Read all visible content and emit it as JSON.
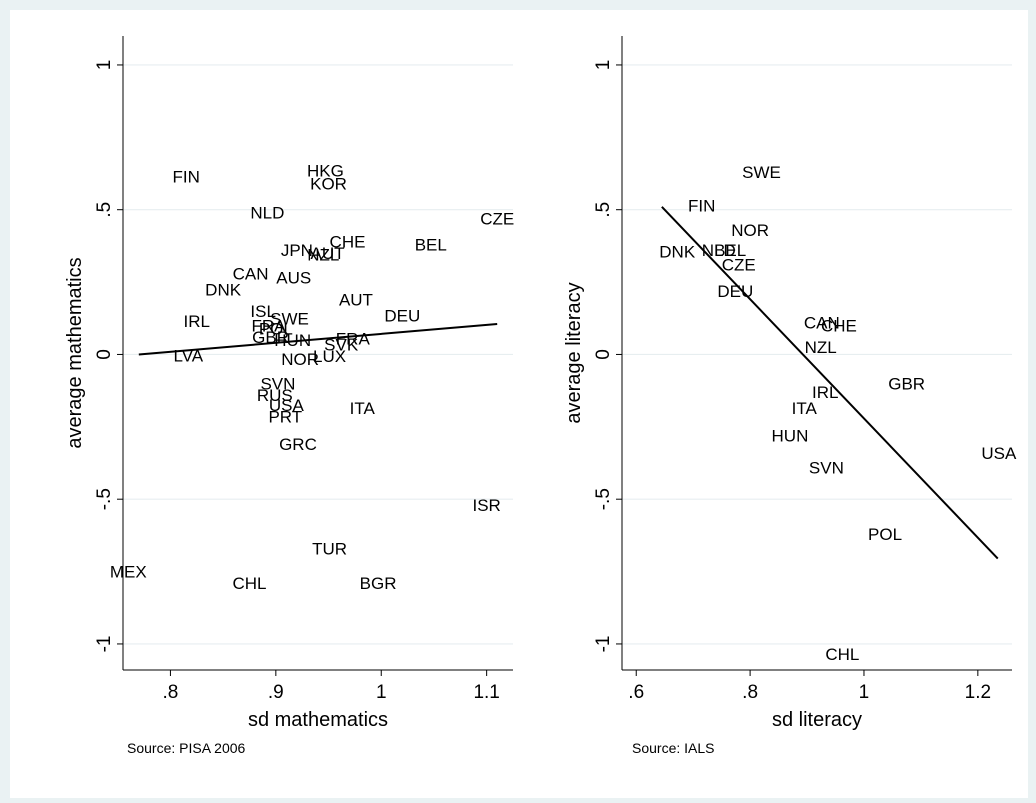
{
  "chart_data": [
    {
      "type": "scatter",
      "xlabel": "sd mathematics",
      "ylabel": "average mathematics",
      "note": "Source: PISA 2006",
      "xlim": [
        0.755,
        1.125
      ],
      "ylim": [
        -1.09,
        1.1
      ],
      "xticks": [
        {
          "value": 0.8,
          "label": ".8"
        },
        {
          "value": 0.9,
          "label": ".9"
        },
        {
          "value": 1.0,
          "label": "1"
        },
        {
          "value": 1.1,
          "label": "1.1"
        }
      ],
      "yticks": [
        {
          "value": -1,
          "label": "-1"
        },
        {
          "value": -0.5,
          "label": "-.5"
        },
        {
          "value": 0,
          "label": "0"
        },
        {
          "value": 0.5,
          "label": ".5"
        },
        {
          "value": 1,
          "label": "1"
        }
      ],
      "grid": true,
      "fit_line": {
        "x": [
          0.77,
          1.11
        ],
        "y": [
          0.0,
          0.105
        ]
      },
      "points": [
        {
          "label": "FIN",
          "x": 0.815,
          "y": 0.615
        },
        {
          "label": "HKG",
          "x": 0.947,
          "y": 0.635
        },
        {
          "label": "KOR",
          "x": 0.95,
          "y": 0.59
        },
        {
          "label": "CZE",
          "x": 1.11,
          "y": 0.47
        },
        {
          "label": "NLD",
          "x": 0.892,
          "y": 0.49
        },
        {
          "label": "CHE",
          "x": 0.968,
          "y": 0.39
        },
        {
          "label": "BEL",
          "x": 1.047,
          "y": 0.38
        },
        {
          "label": "JPN",
          "x": 0.92,
          "y": 0.36
        },
        {
          "label": "NZL",
          "x": 0.945,
          "y": 0.345
        },
        {
          "label": "AUT",
          "x": 0.949,
          "y": 0.35
        },
        {
          "label": "CAN",
          "x": 0.876,
          "y": 0.28
        },
        {
          "label": "AUS",
          "x": 0.917,
          "y": 0.265
        },
        {
          "label": "DNK",
          "x": 0.85,
          "y": 0.225
        },
        {
          "label": "AUT",
          "x": 0.976,
          "y": 0.19
        },
        {
          "label": "DEU",
          "x": 1.02,
          "y": 0.135
        },
        {
          "label": "ISL",
          "x": 0.888,
          "y": 0.15
        },
        {
          "label": "SWE",
          "x": 0.913,
          "y": 0.125
        },
        {
          "label": "IRL",
          "x": 0.825,
          "y": 0.115
        },
        {
          "label": "FRA",
          "x": 0.893,
          "y": 0.1
        },
        {
          "label": "POL",
          "x": 0.9,
          "y": 0.09
        },
        {
          "label": "GBR",
          "x": 0.895,
          "y": 0.06
        },
        {
          "label": "HUN",
          "x": 0.916,
          "y": 0.05
        },
        {
          "label": "FRA",
          "x": 0.973,
          "y": 0.055
        },
        {
          "label": "SVK",
          "x": 0.962,
          "y": 0.035
        },
        {
          "label": "LVA",
          "x": 0.817,
          "y": -0.003
        },
        {
          "label": "NOR",
          "x": 0.923,
          "y": -0.015
        },
        {
          "label": "LUX",
          "x": 0.951,
          "y": -0.005
        },
        {
          "label": "SVN",
          "x": 0.902,
          "y": -0.1
        },
        {
          "label": "RUS",
          "x": 0.899,
          "y": -0.14
        },
        {
          "label": "USA",
          "x": 0.91,
          "y": -0.175
        },
        {
          "label": "ITA",
          "x": 0.982,
          "y": -0.185
        },
        {
          "label": "PRT",
          "x": 0.909,
          "y": -0.215
        },
        {
          "label": "GRC",
          "x": 0.921,
          "y": -0.31
        },
        {
          "label": "ISR",
          "x": 1.1,
          "y": -0.52
        },
        {
          "label": "TUR",
          "x": 0.951,
          "y": -0.67
        },
        {
          "label": "MEX",
          "x": 0.76,
          "y": -0.75
        },
        {
          "label": "CHL",
          "x": 0.875,
          "y": -0.79
        },
        {
          "label": "BGR",
          "x": 0.997,
          "y": -0.79
        }
      ]
    },
    {
      "type": "scatter",
      "xlabel": "sd literacy",
      "ylabel": "average literacy",
      "note": "Source: IALS",
      "xlim": [
        0.575,
        1.26
      ],
      "ylim": [
        -1.09,
        1.1
      ],
      "xticks": [
        {
          "value": 0.6,
          "label": ".6"
        },
        {
          "value": 0.8,
          "label": ".8"
        },
        {
          "value": 1.0,
          "label": "1"
        },
        {
          "value": 1.2,
          "label": "1.2"
        }
      ],
      "yticks": [
        {
          "value": -1,
          "label": "-1"
        },
        {
          "value": -0.5,
          "label": "-.5"
        },
        {
          "value": 0,
          "label": "0"
        },
        {
          "value": 0.5,
          "label": ".5"
        },
        {
          "value": 1,
          "label": "1"
        }
      ],
      "grid": true,
      "fit_line": {
        "x": [
          0.645,
          1.235
        ],
        "y": [
          0.51,
          -0.705
        ]
      },
      "points": [
        {
          "label": "SWE",
          "x": 0.82,
          "y": 0.63
        },
        {
          "label": "FIN",
          "x": 0.715,
          "y": 0.515
        },
        {
          "label": "NOR",
          "x": 0.8,
          "y": 0.43
        },
        {
          "label": "DNK",
          "x": 0.672,
          "y": 0.355
        },
        {
          "label": "NLD",
          "x": 0.745,
          "y": 0.36
        },
        {
          "label": "BEL",
          "x": 0.765,
          "y": 0.36
        },
        {
          "label": "CZE",
          "x": 0.78,
          "y": 0.31
        },
        {
          "label": "DEU",
          "x": 0.774,
          "y": 0.22
        },
        {
          "label": "CAN",
          "x": 0.926,
          "y": 0.11
        },
        {
          "label": "CHE",
          "x": 0.956,
          "y": 0.1
        },
        {
          "label": "NZL",
          "x": 0.924,
          "y": 0.025
        },
        {
          "label": "GBR",
          "x": 1.075,
          "y": -0.1
        },
        {
          "label": "IRL",
          "x": 0.932,
          "y": -0.13
        },
        {
          "label": "ITA",
          "x": 0.895,
          "y": -0.185
        },
        {
          "label": "HUN",
          "x": 0.87,
          "y": -0.28
        },
        {
          "label": "USA",
          "x": 1.237,
          "y": -0.34
        },
        {
          "label": "SVN",
          "x": 0.934,
          "y": -0.39
        },
        {
          "label": "POL",
          "x": 1.037,
          "y": -0.62
        },
        {
          "label": "CHL",
          "x": 0.962,
          "y": -1.035
        }
      ]
    }
  ]
}
